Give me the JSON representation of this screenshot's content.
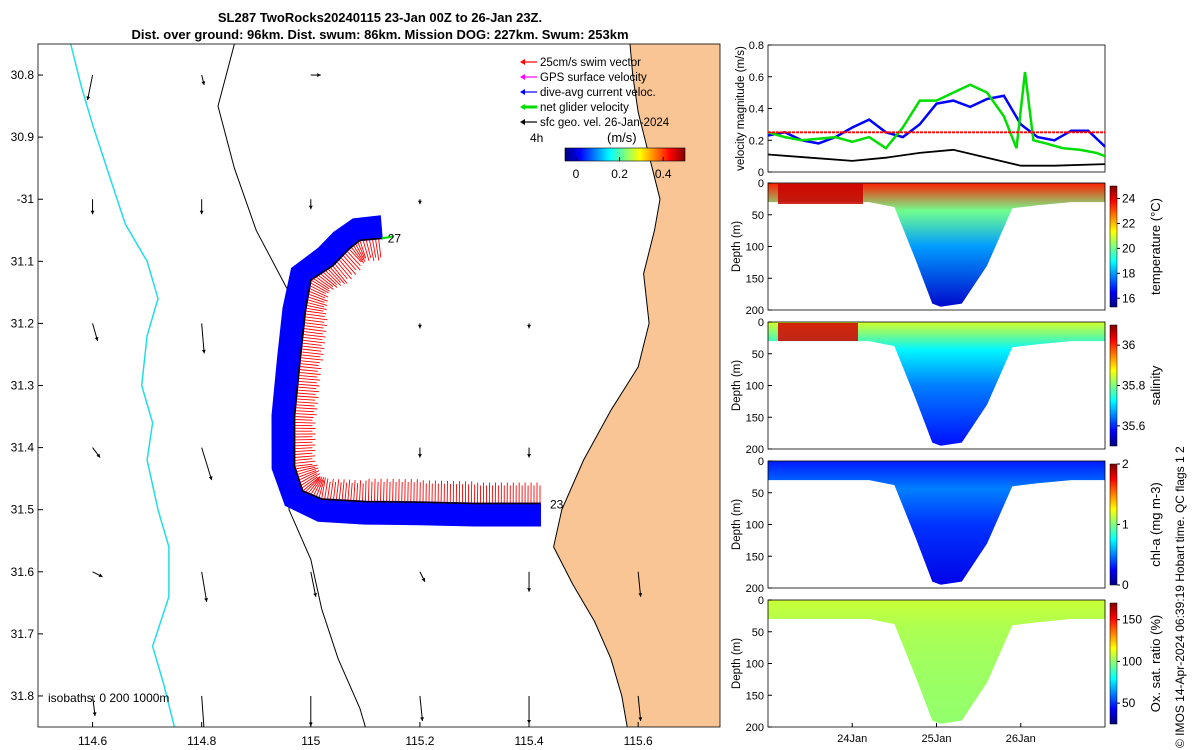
{
  "title": {
    "line1": "SL287 TwoRocks20240115 23-Jan 00Z to 26-Jan 23Z.",
    "line2": "Dist. over ground: 96km. Dist. swum: 86km. Mission DOG: 227km. Swum: 253km"
  },
  "credit": "© IMOS 14-Apr-2024 06:39:19 Hobart time. QC flags 1  2",
  "colors": {
    "land": "#f9c595",
    "isobath_0": "#000000",
    "isobath_200": "#000000",
    "isobath_1000": "#22dde3",
    "swim": "#ff0000",
    "dive_avg": "#0000ff",
    "net": "#00dd00",
    "sfc_geo": "#000000",
    "gps": "#ff00ff"
  },
  "chart_data": [
    {
      "type": "map",
      "xlim": [
        114.5,
        115.75
      ],
      "ylim": [
        -31.85,
        -30.75
      ],
      "x_ticks": [
        114.6,
        114.8,
        115,
        115.2,
        115.4,
        115.6
      ],
      "x_tick_labels": [
        "114.6",
        "114.8",
        "115",
        "115.2",
        "115.4",
        "115.6"
      ],
      "y_ticks": [
        -30.8,
        -30.9,
        -31,
        -31.1,
        -31.2,
        -31.3,
        -31.4,
        -31.5,
        -31.6,
        -31.7,
        -31.8
      ],
      "y_tick_labels": [
        "30.8",
        "30.9",
        "-31",
        "31.1",
        "31.2",
        "31.3",
        "31.4",
        "31.5",
        "31.6",
        "31.7",
        "31.8"
      ],
      "legend": {
        "placement": "top-right",
        "items": [
          {
            "label": "25cm/s swim vector",
            "color": "#ff0000"
          },
          {
            "label": "GPS surface velocity",
            "color": "#ff00ff"
          },
          {
            "label": "dive-avg current veloc.",
            "color": "#0000ff"
          },
          {
            "label": "net glider velocity",
            "color": "#00dd00"
          },
          {
            "label": "sfc geo. vel. 26-Jan-2024",
            "color": "#000000"
          }
        ]
      },
      "vector_scale_label": "4h",
      "colorbar": {
        "label": "(m/s)",
        "ticks": [
          0,
          0.2,
          0.4
        ],
        "tick_labels": [
          "0",
          "0.2",
          "0.4"
        ],
        "range": [
          -0.05,
          0.5
        ]
      },
      "isobath_note": "isobaths: 0   200  1000m",
      "track_start_label": "23",
      "track_end_label": "27",
      "track": [
        [
          115.42,
          -31.49
        ],
        [
          115.3,
          -31.49
        ],
        [
          115.2,
          -31.488
        ],
        [
          115.1,
          -31.487
        ],
        [
          115.02,
          -31.483
        ],
        [
          114.985,
          -31.47
        ],
        [
          114.97,
          -31.43
        ],
        [
          114.97,
          -31.35
        ],
        [
          114.98,
          -31.26
        ],
        [
          114.99,
          -31.18
        ],
        [
          115.0,
          -31.13
        ],
        [
          115.04,
          -31.107
        ],
        [
          115.07,
          -31.08
        ],
        [
          115.09,
          -31.066
        ],
        [
          115.13,
          -31.063
        ]
      ],
      "geo_vectors": [
        {
          "lon": 114.6,
          "lat": -30.8,
          "u": -0.01,
          "v": -0.05
        },
        {
          "lon": 114.8,
          "lat": -30.8,
          "u": 0.005,
          "v": -0.02
        },
        {
          "lon": 115.0,
          "lat": -30.8,
          "u": 0.02,
          "v": 0.0
        },
        {
          "lon": 114.6,
          "lat": -31.0,
          "u": 0.0,
          "v": -0.03
        },
        {
          "lon": 114.8,
          "lat": -31.0,
          "u": 0.0,
          "v": -0.03
        },
        {
          "lon": 115.0,
          "lat": -31.0,
          "u": 0.0,
          "v": -0.02
        },
        {
          "lon": 115.2,
          "lat": -31.0,
          "u": 0.0,
          "v": -0.01
        },
        {
          "lon": 114.6,
          "lat": -31.2,
          "u": 0.01,
          "v": -0.035
        },
        {
          "lon": 114.8,
          "lat": -31.2,
          "u": 0.005,
          "v": -0.06
        },
        {
          "lon": 115.2,
          "lat": -31.2,
          "u": 0.0,
          "v": -0.01
        },
        {
          "lon": 115.4,
          "lat": -31.2,
          "u": 0.0,
          "v": -0.01
        },
        {
          "lon": 114.6,
          "lat": -31.4,
          "u": 0.015,
          "v": -0.02
        },
        {
          "lon": 114.8,
          "lat": -31.4,
          "u": 0.02,
          "v": -0.065
        },
        {
          "lon": 115.2,
          "lat": -31.4,
          "u": 0.0,
          "v": -0.02
        },
        {
          "lon": 115.4,
          "lat": -31.4,
          "u": 0.0,
          "v": -0.02
        },
        {
          "lon": 114.6,
          "lat": -31.6,
          "u": 0.02,
          "v": -0.01
        },
        {
          "lon": 114.8,
          "lat": -31.6,
          "u": 0.01,
          "v": -0.06
        },
        {
          "lon": 115.0,
          "lat": -31.6,
          "u": 0.01,
          "v": -0.05
        },
        {
          "lon": 115.2,
          "lat": -31.6,
          "u": 0.01,
          "v": -0.02
        },
        {
          "lon": 115.4,
          "lat": -31.6,
          "u": 0.0,
          "v": -0.04
        },
        {
          "lon": 115.6,
          "lat": -31.6,
          "u": 0.005,
          "v": -0.05
        },
        {
          "lon": 114.6,
          "lat": -31.8,
          "u": 0.005,
          "v": -0.04
        },
        {
          "lon": 114.8,
          "lat": -31.8,
          "u": 0.005,
          "v": -0.07
        },
        {
          "lon": 115.0,
          "lat": -31.8,
          "u": 0.0,
          "v": -0.06
        },
        {
          "lon": 115.2,
          "lat": -31.8,
          "u": 0.005,
          "v": -0.05
        },
        {
          "lon": 115.4,
          "lat": -31.8,
          "u": 0.0,
          "v": -0.055
        },
        {
          "lon": 115.6,
          "lat": -31.8,
          "u": 0.005,
          "v": -0.05
        }
      ]
    },
    {
      "type": "line",
      "ylabel": "velocity magnitude (m/s)",
      "ylim": [
        0,
        0.8
      ],
      "y_ticks": [
        0,
        0.2,
        0.4,
        0.6,
        0.8
      ],
      "xlim": [
        23.0,
        27.0
      ],
      "series": [
        {
          "color": "#0000ff",
          "x": [
            23.0,
            23.2,
            23.4,
            23.6,
            23.8,
            24.0,
            24.2,
            24.4,
            24.6,
            24.8,
            25.0,
            25.2,
            25.4,
            25.6,
            25.8,
            26.0,
            26.2,
            26.4,
            26.6,
            26.8,
            27.0
          ],
          "y": [
            0.23,
            0.25,
            0.2,
            0.18,
            0.22,
            0.28,
            0.33,
            0.25,
            0.22,
            0.3,
            0.43,
            0.45,
            0.41,
            0.46,
            0.48,
            0.3,
            0.22,
            0.2,
            0.26,
            0.26,
            0.16
          ]
        },
        {
          "color": "#00dd00",
          "x": [
            23.0,
            23.2,
            23.4,
            23.6,
            23.8,
            24.0,
            24.2,
            24.4,
            24.6,
            24.8,
            25.0,
            25.2,
            25.4,
            25.6,
            25.8,
            25.95,
            26.05,
            26.15,
            26.3,
            26.5,
            26.7,
            26.9,
            27.0
          ],
          "y": [
            0.25,
            0.22,
            0.2,
            0.21,
            0.22,
            0.19,
            0.22,
            0.15,
            0.28,
            0.45,
            0.45,
            0.5,
            0.55,
            0.5,
            0.35,
            0.15,
            0.63,
            0.2,
            0.18,
            0.15,
            0.14,
            0.12,
            0.1
          ]
        },
        {
          "color": "#ff0000",
          "x": [
            23.0,
            24.0,
            25.0,
            26.0,
            27.0
          ],
          "y": [
            0.25,
            0.25,
            0.25,
            0.25,
            0.25
          ]
        },
        {
          "color": "#000000",
          "x": [
            23.0,
            23.5,
            24.0,
            24.4,
            24.8,
            25.2,
            25.6,
            26.0,
            26.4,
            27.0
          ],
          "y": [
            0.11,
            0.09,
            0.07,
            0.09,
            0.12,
            0.14,
            0.09,
            0.04,
            0.04,
            0.05
          ]
        }
      ]
    },
    {
      "type": "heatmap",
      "variable": "temperature",
      "cbar_label": "temperature (°C)",
      "cbar_ticks": [
        16,
        18,
        20,
        22,
        24
      ],
      "cbar_range": [
        15.3,
        25.0
      ],
      "ylabel": "Depth (m)",
      "ylim": [
        0,
        200
      ],
      "y_ticks": [
        0,
        50,
        100,
        150,
        200
      ],
      "xlim": [
        23.0,
        27.0
      ],
      "profile_depth": {
        "x": [
          23.0,
          23.9,
          24.2,
          24.5,
          24.75,
          24.95,
          25.05,
          25.3,
          25.6,
          25.9,
          26.2,
          26.6,
          27.0
        ],
        "depth": [
          30,
          30,
          30,
          38,
          120,
          190,
          195,
          190,
          130,
          40,
          35,
          30,
          30
        ]
      },
      "levels": {
        "surface": 23.5,
        "mid": 20.0,
        "deep": 16.0
      }
    },
    {
      "type": "heatmap",
      "variable": "salinity",
      "cbar_label": "salinity",
      "cbar_ticks": [
        35.6,
        35.8,
        36
      ],
      "cbar_range": [
        35.5,
        36.1
      ],
      "ylabel": "Depth (m)",
      "ylim": [
        0,
        200
      ],
      "y_ticks": [
        0,
        50,
        100,
        150,
        200
      ],
      "xlim": [
        23.0,
        27.0
      ],
      "profile_depth": {
        "x": [
          23.0,
          23.9,
          24.2,
          24.5,
          24.75,
          24.95,
          25.05,
          25.3,
          25.6,
          25.9,
          26.2,
          26.6,
          27.0
        ],
        "depth": [
          30,
          30,
          30,
          38,
          120,
          190,
          195,
          190,
          130,
          40,
          35,
          30,
          30
        ]
      },
      "levels": {
        "surface": 35.85,
        "mid": 35.72,
        "deep": 35.58
      }
    },
    {
      "type": "heatmap",
      "variable": "chl-a",
      "cbar_label": "chl-a (mg m-3)",
      "cbar_ticks": [
        0,
        1,
        2
      ],
      "cbar_range": [
        0,
        2
      ],
      "ylabel": "Depth (m)",
      "ylim": [
        0,
        200
      ],
      "y_ticks": [
        0,
        50,
        100,
        150,
        200
      ],
      "xlim": [
        23.0,
        27.0
      ],
      "profile_depth": {
        "x": [
          23.0,
          23.9,
          24.2,
          24.5,
          24.75,
          24.95,
          25.05,
          25.3,
          25.6,
          25.9,
          26.2,
          26.6,
          27.0
        ],
        "depth": [
          30,
          30,
          30,
          38,
          120,
          190,
          195,
          190,
          130,
          40,
          35,
          30,
          30
        ]
      },
      "levels": {
        "surface": 0.3,
        "mid": 0.5,
        "deep": 0.2
      }
    },
    {
      "type": "heatmap",
      "variable": "oxygen saturation",
      "cbar_label": "Ox. sat. ratio (%)",
      "cbar_ticks": [
        50,
        100,
        150
      ],
      "cbar_range": [
        25,
        170
      ],
      "ylabel": "Depth (m)",
      "ylim": [
        0,
        200
      ],
      "y_ticks": [
        0,
        50,
        100,
        150,
        200
      ],
      "xlim": [
        23.0,
        27.0
      ],
      "x_ticks": [
        24.0,
        25.0,
        26.0
      ],
      "x_tick_labels": [
        "24Jan",
        "25Jan",
        "26Jan"
      ],
      "profile_depth": {
        "x": [
          23.0,
          23.9,
          24.2,
          24.5,
          24.75,
          24.95,
          25.05,
          25.3,
          25.6,
          25.9,
          26.2,
          26.6,
          27.0
        ],
        "depth": [
          30,
          30,
          30,
          38,
          120,
          190,
          195,
          190,
          130,
          40,
          35,
          30,
          30
        ]
      },
      "levels": {
        "surface": 108,
        "mid": 104,
        "deep": 100
      }
    }
  ]
}
